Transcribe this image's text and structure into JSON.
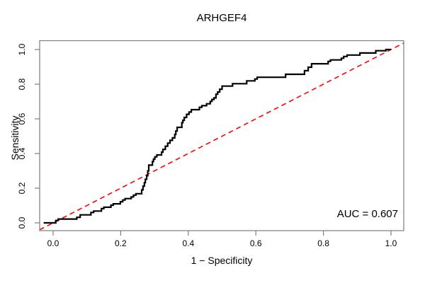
{
  "chart_data": {
    "type": "line",
    "subtype": "roc-curve",
    "title": "ARHGEF4",
    "xlabel": "1 − Specificity",
    "ylabel": "Sensitivity",
    "annotation": "AUC = 0.607",
    "auc": 0.607,
    "xlim": [
      0,
      1
    ],
    "ylim": [
      0,
      1
    ],
    "grid": false,
    "legend": false,
    "background": "#ffffff",
    "frame_color": "#7d7d7d",
    "tick_label_color": "#000000",
    "x_ticks": [
      0.0,
      0.2,
      0.4,
      0.6,
      0.8,
      1.0
    ],
    "x_tick_labels": [
      "0.0",
      "0.2",
      "0.4",
      "0.6",
      "0.8",
      "1.0"
    ],
    "y_ticks": [
      0.0,
      0.2,
      0.4,
      0.6,
      0.8,
      1.0
    ],
    "y_tick_labels": [
      "0.0",
      "0.2",
      "0.4",
      "0.6",
      "0.8",
      "1.0"
    ],
    "series": [
      {
        "name": "chance-diagonal",
        "color": "#ff0000",
        "style": "dashed",
        "width": 1.6,
        "points": [
          [
            -0.04,
            -0.04
          ],
          [
            1.04,
            1.04
          ]
        ]
      },
      {
        "name": "roc-curve",
        "color": "#000000",
        "style": "solid",
        "width": 2.2,
        "points": [
          [
            -0.028,
            0
          ],
          [
            0.008,
            0
          ],
          [
            0.008,
            0.014
          ],
          [
            0.015,
            0.014
          ],
          [
            0.015,
            0.022
          ],
          [
            0.07,
            0.022
          ],
          [
            0.07,
            0.032
          ],
          [
            0.08,
            0.032
          ],
          [
            0.08,
            0.046
          ],
          [
            0.112,
            0.046
          ],
          [
            0.112,
            0.06
          ],
          [
            0.12,
            0.06
          ],
          [
            0.12,
            0.068
          ],
          [
            0.143,
            0.068
          ],
          [
            0.143,
            0.082
          ],
          [
            0.15,
            0.082
          ],
          [
            0.15,
            0.09
          ],
          [
            0.171,
            0.09
          ],
          [
            0.171,
            0.102
          ],
          [
            0.178,
            0.102
          ],
          [
            0.178,
            0.11
          ],
          [
            0.199,
            0.11
          ],
          [
            0.199,
            0.122
          ],
          [
            0.206,
            0.122
          ],
          [
            0.206,
            0.132
          ],
          [
            0.213,
            0.132
          ],
          [
            0.213,
            0.14
          ],
          [
            0.231,
            0.14
          ],
          [
            0.231,
            0.15
          ],
          [
            0.238,
            0.15
          ],
          [
            0.238,
            0.16
          ],
          [
            0.245,
            0.16
          ],
          [
            0.245,
            0.168
          ],
          [
            0.262,
            0.168
          ],
          [
            0.262,
            0.19
          ],
          [
            0.266,
            0.19
          ],
          [
            0.266,
            0.212
          ],
          [
            0.27,
            0.212
          ],
          [
            0.27,
            0.232
          ],
          [
            0.273,
            0.232
          ],
          [
            0.273,
            0.252
          ],
          [
            0.277,
            0.252
          ],
          [
            0.277,
            0.272
          ],
          [
            0.28,
            0.272
          ],
          [
            0.28,
            0.3
          ],
          [
            0.283,
            0.3
          ],
          [
            0.283,
            0.333
          ],
          [
            0.294,
            0.333
          ],
          [
            0.294,
            0.354
          ],
          [
            0.297,
            0.354
          ],
          [
            0.297,
            0.368
          ],
          [
            0.301,
            0.368
          ],
          [
            0.301,
            0.381
          ],
          [
            0.307,
            0.381
          ],
          [
            0.307,
            0.392
          ],
          [
            0.321,
            0.392
          ],
          [
            0.321,
            0.408
          ],
          [
            0.325,
            0.408
          ],
          [
            0.325,
            0.424
          ],
          [
            0.332,
            0.424
          ],
          [
            0.332,
            0.442
          ],
          [
            0.339,
            0.442
          ],
          [
            0.339,
            0.46
          ],
          [
            0.346,
            0.46
          ],
          [
            0.346,
            0.476
          ],
          [
            0.353,
            0.476
          ],
          [
            0.353,
            0.49
          ],
          [
            0.36,
            0.49
          ],
          [
            0.36,
            0.51
          ],
          [
            0.363,
            0.51
          ],
          [
            0.363,
            0.53
          ],
          [
            0.367,
            0.53
          ],
          [
            0.367,
            0.551
          ],
          [
            0.381,
            0.551
          ],
          [
            0.381,
            0.578
          ],
          [
            0.384,
            0.578
          ],
          [
            0.384,
            0.592
          ],
          [
            0.388,
            0.592
          ],
          [
            0.388,
            0.608
          ],
          [
            0.395,
            0.608
          ],
          [
            0.395,
            0.626
          ],
          [
            0.402,
            0.626
          ],
          [
            0.402,
            0.639
          ],
          [
            0.409,
            0.639
          ],
          [
            0.409,
            0.653
          ],
          [
            0.433,
            0.653
          ],
          [
            0.433,
            0.667
          ],
          [
            0.44,
            0.667
          ],
          [
            0.44,
            0.676
          ],
          [
            0.454,
            0.676
          ],
          [
            0.454,
            0.687
          ],
          [
            0.465,
            0.687
          ],
          [
            0.465,
            0.701
          ],
          [
            0.47,
            0.701
          ],
          [
            0.47,
            0.712
          ],
          [
            0.476,
            0.712
          ],
          [
            0.476,
            0.721
          ],
          [
            0.482,
            0.721
          ],
          [
            0.482,
            0.742
          ],
          [
            0.487,
            0.742
          ],
          [
            0.487,
            0.755
          ],
          [
            0.493,
            0.755
          ],
          [
            0.493,
            0.771
          ],
          [
            0.5,
            0.771
          ],
          [
            0.5,
            0.789
          ],
          [
            0.531,
            0.789
          ],
          [
            0.531,
            0.803
          ],
          [
            0.573,
            0.803
          ],
          [
            0.573,
            0.819
          ],
          [
            0.597,
            0.819
          ],
          [
            0.597,
            0.83
          ],
          [
            0.604,
            0.83
          ],
          [
            0.604,
            0.84
          ],
          [
            0.688,
            0.84
          ],
          [
            0.688,
            0.857
          ],
          [
            0.744,
            0.857
          ],
          [
            0.744,
            0.878
          ],
          [
            0.755,
            0.878
          ],
          [
            0.755,
            0.898
          ],
          [
            0.765,
            0.898
          ],
          [
            0.765,
            0.918
          ],
          [
            0.814,
            0.918
          ],
          [
            0.814,
            0.932
          ],
          [
            0.821,
            0.932
          ],
          [
            0.821,
            0.94
          ],
          [
            0.853,
            0.94
          ],
          [
            0.853,
            0.95
          ],
          [
            0.86,
            0.95
          ],
          [
            0.86,
            0.96
          ],
          [
            0.87,
            0.96
          ],
          [
            0.87,
            0.968
          ],
          [
            0.908,
            0.968
          ],
          [
            0.908,
            0.98
          ],
          [
            0.955,
            0.98
          ],
          [
            0.955,
            0.993
          ],
          [
            0.985,
            0.993
          ],
          [
            0.985,
            1.0
          ],
          [
            1.0,
            1.0
          ]
        ]
      }
    ]
  }
}
